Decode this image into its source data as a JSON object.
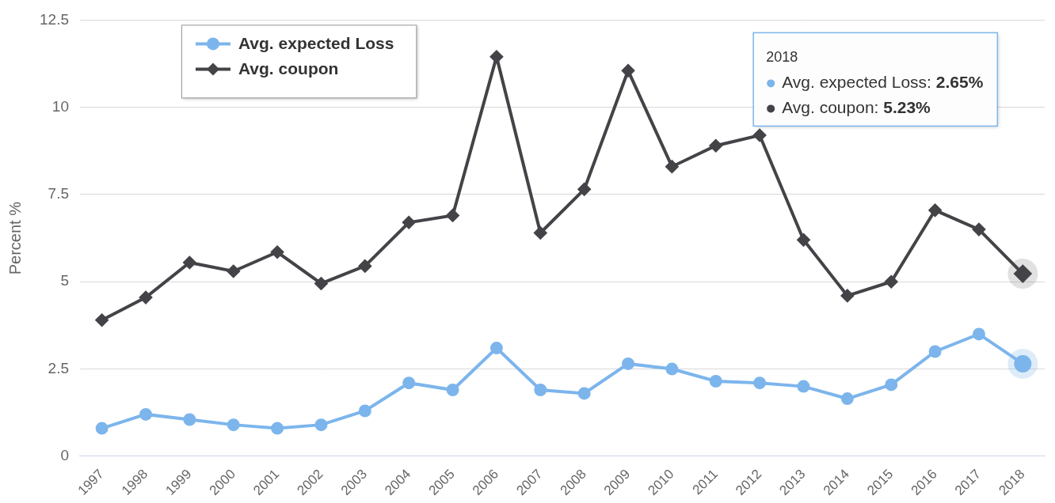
{
  "chart_data": {
    "type": "line",
    "y_label": "Percent %",
    "categories": [
      "1997",
      "1998",
      "1999",
      "2000",
      "2001",
      "2002",
      "2003",
      "2004",
      "2005",
      "2006",
      "2007",
      "2008",
      "2009",
      "2010",
      "2011",
      "2012",
      "2013",
      "2014",
      "2015",
      "2016",
      "2017",
      "2018"
    ],
    "series": [
      {
        "name": "Avg. expected Loss",
        "color": "#7cb5ec",
        "marker": "circle",
        "values": [
          0.8,
          1.2,
          1.05,
          0.9,
          0.8,
          0.9,
          1.3,
          2.1,
          1.9,
          3.1,
          1.9,
          1.8,
          2.65,
          2.5,
          2.15,
          2.1,
          2.0,
          1.65,
          2.05,
          3.0,
          3.5,
          2.65
        ]
      },
      {
        "name": "Avg. coupon",
        "color": "#434348",
        "marker": "diamond",
        "values": [
          3.9,
          4.55,
          5.55,
          5.3,
          5.85,
          4.95,
          5.45,
          6.7,
          6.9,
          11.45,
          6.4,
          7.65,
          11.05,
          8.3,
          8.9,
          9.2,
          6.2,
          4.6,
          5.0,
          7.05,
          6.5,
          5.23
        ]
      }
    ],
    "ylim": [
      0,
      12.5
    ],
    "yticks": [
      0,
      2.5,
      5,
      7.5,
      10,
      12.5
    ],
    "grid": true,
    "legend": "upper left",
    "tooltip": {
      "category": "2018",
      "title": "2018",
      "lines": [
        "Avg. expected Loss: 2.65%",
        "Avg. coupon: 5.23%"
      ]
    }
  }
}
